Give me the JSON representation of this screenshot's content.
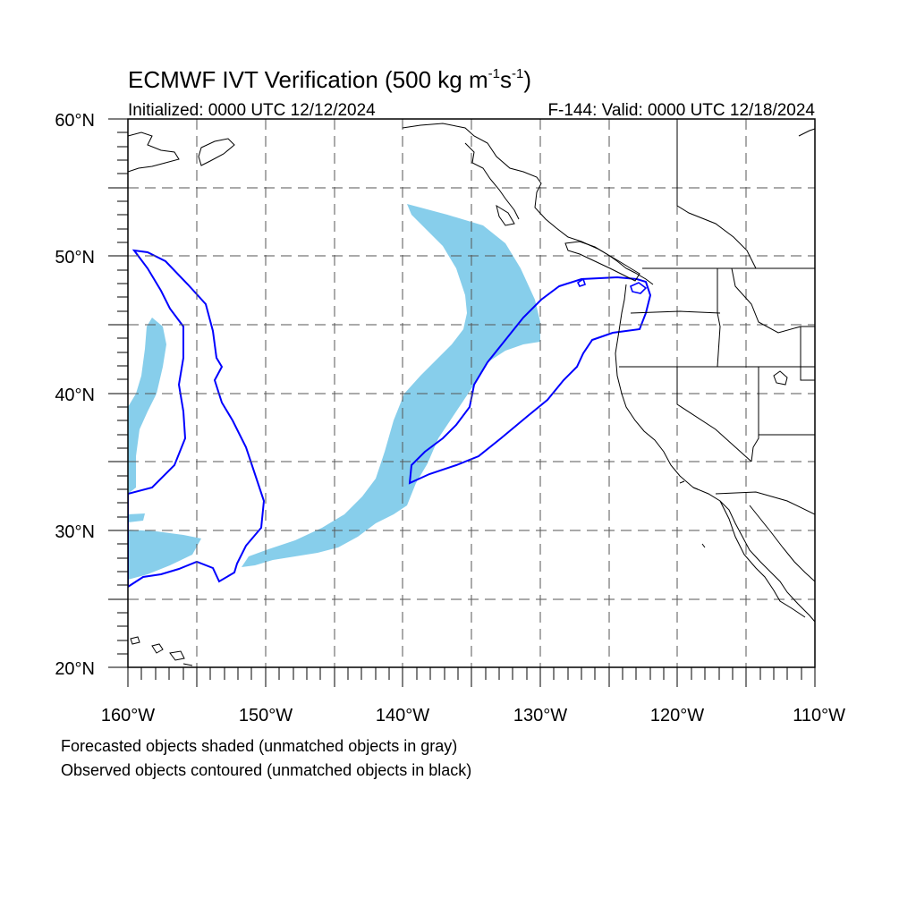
{
  "title": {
    "main": "ECMWF IVT Verification (500 kg m",
    "exp1": "-1",
    "mid": "s",
    "exp2": "-1",
    "end": ")"
  },
  "initialized": "Initialized: 0000 UTC 12/12/2024",
  "valid": "F-144: Valid: 0000 UTC 12/18/2024",
  "axes": {
    "lon_ticks": [
      "160°W",
      "150°W",
      "140°W",
      "130°W",
      "120°W",
      "110°W"
    ],
    "lat_ticks": [
      "60°N",
      "50°N",
      "40°N",
      "30°N",
      "20°N"
    ]
  },
  "notes": [
    "Forecasted objects shaded (unmatched objects in gray)",
    "Observed objects contoured (unmatched objects in black)"
  ],
  "colors": {
    "forecast_fill": "#87ceeb",
    "observed_contour": "#0000ff",
    "coastline": "#000000",
    "grid": "#555555"
  }
}
